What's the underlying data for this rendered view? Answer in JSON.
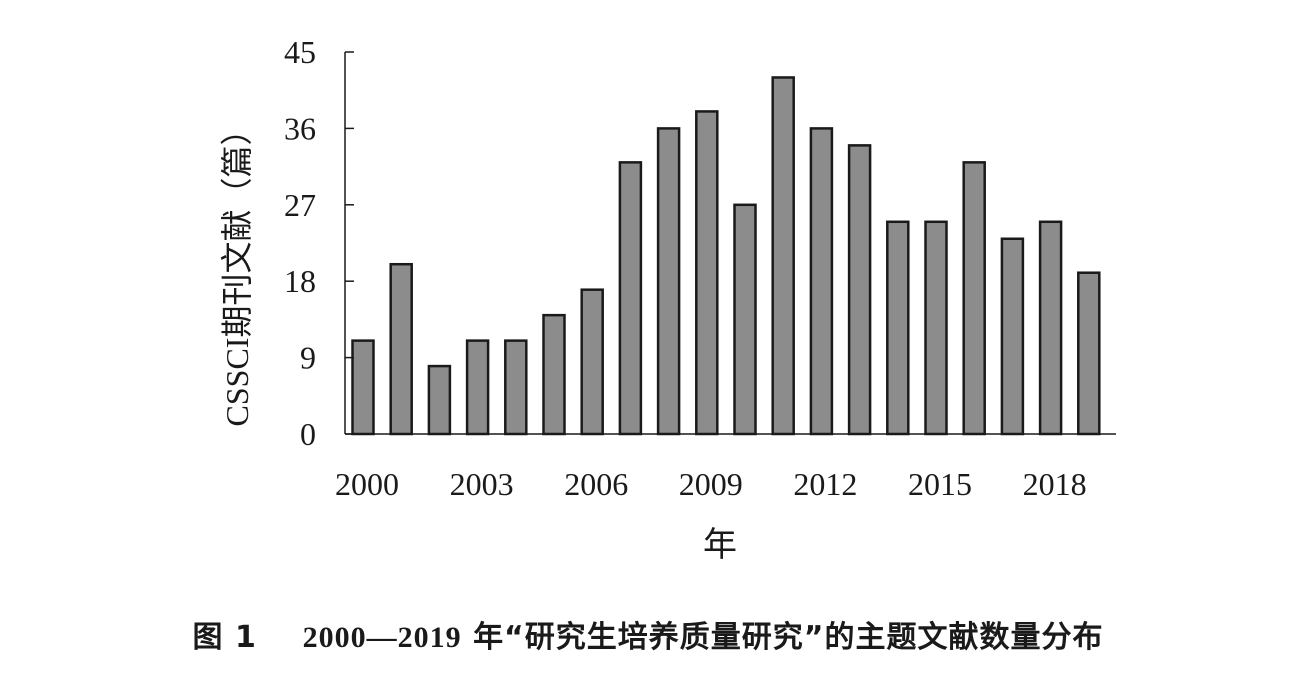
{
  "chart_data": {
    "type": "bar",
    "categories": [
      "2000",
      "2001",
      "2002",
      "2003",
      "2004",
      "2005",
      "2006",
      "2007",
      "2008",
      "2009",
      "2010",
      "2011",
      "2012",
      "2013",
      "2014",
      "2015",
      "2016",
      "2017",
      "2018",
      "2019"
    ],
    "values": [
      11,
      20,
      8,
      11,
      11,
      14,
      17,
      32,
      36,
      38,
      27,
      42,
      36,
      34,
      25,
      25,
      32,
      23,
      25,
      19
    ],
    "ylim": [
      0,
      45
    ],
    "yticks": [
      "0",
      "9",
      "18",
      "27",
      "36",
      "45"
    ],
    "xtick_labels": [
      "2000",
      "2003",
      "2006",
      "2009",
      "2012",
      "2015",
      "2018"
    ],
    "xlabel": "年",
    "ylabel": "CSSCI期刊文献（篇）",
    "bar_color": "#8c8c8c",
    "bar_edge_color": "#1a1a1a",
    "grid": false,
    "legend": "none"
  },
  "caption": {
    "figure_label": "图 1",
    "years": "2000—2019",
    "text": "年“研究生培养质量研究”的主题文献数量分布"
  }
}
